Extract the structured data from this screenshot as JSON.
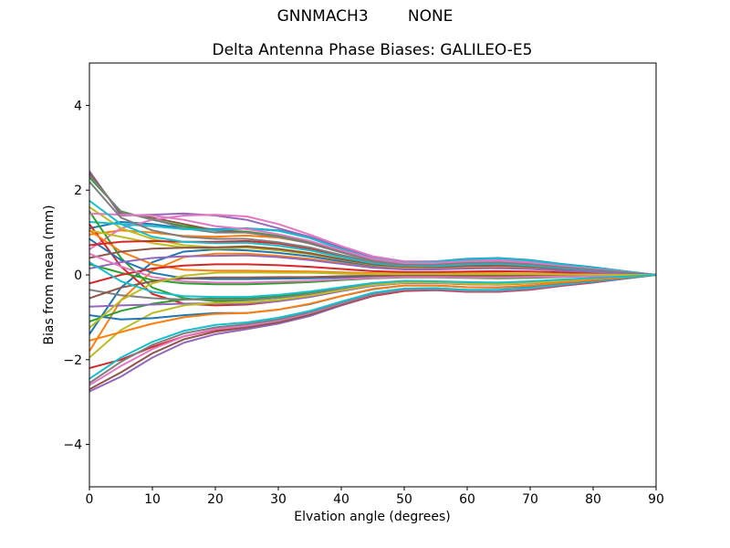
{
  "figure": {
    "suptitle": "GNNMACH3        NONE",
    "title": "Delta Antenna Phase Biases: GALILEO-E5",
    "xlabel": "Elvation angle (degrees)",
    "ylabel": "Bias from mean (mm)"
  },
  "chart_data": {
    "type": "line",
    "title": "Delta Antenna Phase Biases: GALILEO-E5",
    "suptitle": "GNNMACH3        NONE",
    "xlabel": "Elvation angle (degrees)",
    "ylabel": "Bias from mean (mm)",
    "xlim": [
      0,
      90
    ],
    "ylim": [
      -5,
      5
    ],
    "grid": false,
    "legend": "none",
    "axis_color": "#000000",
    "background_color": "#ffffff",
    "palette": [
      "#1f77b4",
      "#ff7f0e",
      "#2ca02c",
      "#d62728",
      "#9467bd",
      "#8c564b",
      "#e377c2",
      "#7f7f7f",
      "#bcbd22",
      "#17becf"
    ],
    "x_ticks": [
      {
        "v": 0,
        "label": "0"
      },
      {
        "v": 10,
        "label": "10"
      },
      {
        "v": 20,
        "label": "20"
      },
      {
        "v": 30,
        "label": "30"
      },
      {
        "v": 40,
        "label": "40"
      },
      {
        "v": 50,
        "label": "50"
      },
      {
        "v": 60,
        "label": "60"
      },
      {
        "v": 70,
        "label": "70"
      },
      {
        "v": 80,
        "label": "80"
      },
      {
        "v": 90,
        "label": "90"
      }
    ],
    "y_ticks": [
      {
        "v": -4,
        "label": "−4"
      },
      {
        "v": -2,
        "label": "−2"
      },
      {
        "v": 0,
        "label": "0"
      },
      {
        "v": 2,
        "label": "2"
      },
      {
        "v": 4,
        "label": "4"
      }
    ],
    "x": [
      0,
      5,
      10,
      15,
      20,
      25,
      30,
      35,
      40,
      45,
      50,
      55,
      60,
      65,
      70,
      75,
      80,
      85,
      90
    ],
    "series": [
      {
        "values": [
          1.1,
          1.25,
          1.2,
          1.1,
          1.08,
          1.1,
          1.05,
          0.88,
          0.62,
          0.4,
          0.3,
          0.32,
          0.38,
          0.4,
          0.35,
          0.26,
          0.18,
          0.09,
          0.0
        ]
      },
      {
        "values": [
          0.95,
          1.05,
          1.0,
          0.92,
          0.9,
          0.93,
          0.88,
          0.75,
          0.55,
          0.35,
          0.27,
          0.28,
          0.33,
          0.34,
          0.3,
          0.22,
          0.15,
          0.08,
          0.0
        ]
      },
      {
        "values": [
          2.3,
          1.5,
          1.3,
          1.15,
          1.05,
          1.02,
          0.92,
          0.78,
          0.58,
          0.38,
          0.28,
          0.29,
          0.34,
          0.35,
          0.3,
          0.22,
          0.15,
          0.08,
          0.0
        ]
      },
      {
        "values": [
          -2.2,
          -2.0,
          -1.7,
          -1.45,
          -1.3,
          -1.22,
          -1.1,
          -0.95,
          -0.72,
          -0.5,
          -0.38,
          -0.36,
          -0.4,
          -0.4,
          -0.35,
          -0.26,
          -0.18,
          -0.09,
          0.0
        ]
      },
      {
        "values": [
          2.45,
          1.4,
          1.42,
          1.45,
          1.4,
          1.3,
          1.1,
          0.9,
          0.65,
          0.42,
          0.3,
          0.3,
          0.35,
          0.36,
          0.31,
          0.23,
          0.15,
          0.08,
          0.0
        ]
      },
      {
        "values": [
          2.4,
          1.45,
          1.35,
          1.2,
          1.05,
          1.0,
          0.9,
          0.75,
          0.55,
          0.36,
          0.27,
          0.27,
          0.31,
          0.32,
          0.28,
          0.2,
          0.13,
          0.07,
          0.0
        ]
      },
      {
        "values": [
          0.6,
          1.1,
          1.3,
          1.4,
          1.42,
          1.38,
          1.2,
          0.95,
          0.68,
          0.44,
          0.32,
          0.32,
          0.36,
          0.37,
          0.32,
          0.23,
          0.15,
          0.08,
          0.0
        ]
      },
      {
        "values": [
          2.35,
          1.48,
          1.32,
          1.1,
          1.0,
          1.0,
          0.9,
          0.74,
          0.53,
          0.34,
          0.25,
          0.25,
          0.29,
          0.3,
          0.26,
          0.19,
          0.13,
          0.07,
          0.0
        ]
      },
      {
        "values": [
          1.6,
          1.1,
          0.85,
          0.7,
          0.65,
          0.68,
          0.62,
          0.52,
          0.38,
          0.25,
          0.19,
          0.2,
          0.23,
          0.24,
          0.21,
          0.15,
          0.1,
          0.05,
          0.0
        ]
      },
      {
        "values": [
          1.25,
          1.2,
          1.15,
          1.08,
          1.06,
          1.09,
          1.04,
          0.87,
          0.61,
          0.39,
          0.29,
          0.31,
          0.37,
          0.39,
          0.34,
          0.25,
          0.17,
          0.09,
          0.0
        ]
      },
      {
        "values": [
          -1.4,
          -0.3,
          0.3,
          0.55,
          0.6,
          0.58,
          0.52,
          0.44,
          0.32,
          0.21,
          0.16,
          0.17,
          0.2,
          0.21,
          0.18,
          0.13,
          0.09,
          0.05,
          0.0
        ]
      },
      {
        "values": [
          -1.8,
          -0.6,
          0.1,
          0.42,
          0.5,
          0.5,
          0.45,
          0.38,
          0.28,
          0.18,
          0.14,
          0.14,
          0.17,
          0.18,
          0.15,
          0.11,
          0.07,
          0.04,
          0.0
        ]
      },
      {
        "values": [
          1.5,
          0.4,
          -0.3,
          -0.55,
          -0.62,
          -0.6,
          -0.54,
          -0.45,
          -0.33,
          -0.22,
          -0.17,
          -0.17,
          -0.2,
          -0.21,
          -0.18,
          -0.13,
          -0.09,
          -0.05,
          0.0
        ]
      },
      {
        "values": [
          1.2,
          0.2,
          -0.45,
          -0.68,
          -0.72,
          -0.7,
          -0.62,
          -0.52,
          -0.38,
          -0.25,
          -0.19,
          -0.19,
          -0.22,
          -0.23,
          -0.2,
          -0.15,
          -0.1,
          -0.05,
          0.0
        ]
      },
      {
        "values": [
          -2.75,
          -2.4,
          -1.95,
          -1.6,
          -1.4,
          -1.28,
          -1.15,
          -0.97,
          -0.72,
          -0.48,
          -0.36,
          -0.35,
          -0.39,
          -0.39,
          -0.34,
          -0.25,
          -0.17,
          -0.09,
          0.0
        ]
      },
      {
        "values": [
          -2.7,
          -2.3,
          -1.85,
          -1.52,
          -1.34,
          -1.24,
          -1.12,
          -0.94,
          -0.7,
          -0.47,
          -0.35,
          -0.34,
          -0.38,
          -0.38,
          -0.33,
          -0.24,
          -0.16,
          -0.08,
          0.0
        ]
      },
      {
        "values": [
          -2.6,
          -2.15,
          -1.75,
          -1.45,
          -1.28,
          -1.2,
          -1.08,
          -0.9,
          -0.67,
          -0.45,
          -0.34,
          -0.33,
          -0.37,
          -0.37,
          -0.32,
          -0.23,
          -0.15,
          -0.08,
          0.0
        ]
      },
      {
        "values": [
          -2.55,
          -2.05,
          -1.65,
          -1.38,
          -1.24,
          -1.16,
          -1.05,
          -0.88,
          -0.65,
          -0.44,
          -0.33,
          -0.32,
          -0.36,
          -0.36,
          -0.31,
          -0.22,
          -0.15,
          -0.08,
          0.0
        ]
      },
      {
        "values": [
          1.05,
          0.9,
          0.75,
          0.65,
          0.62,
          0.64,
          0.58,
          0.49,
          0.36,
          0.24,
          0.18,
          0.19,
          0.22,
          0.23,
          0.2,
          0.14,
          0.1,
          0.05,
          0.0
        ]
      },
      {
        "values": [
          -2.45,
          -1.95,
          -1.58,
          -1.32,
          -1.18,
          -1.12,
          -1.01,
          -0.85,
          -0.63,
          -0.42,
          -0.32,
          -0.31,
          -0.35,
          -0.35,
          -0.3,
          -0.22,
          -0.15,
          -0.08,
          0.0
        ]
      },
      {
        "values": [
          0.85,
          0.35,
          0.05,
          -0.08,
          -0.1,
          -0.1,
          -0.09,
          -0.08,
          -0.06,
          -0.04,
          -0.03,
          -0.03,
          -0.04,
          -0.04,
          -0.03,
          -0.02,
          -0.02,
          -0.01,
          0.0
        ]
      },
      {
        "values": [
          1.05,
          0.55,
          0.25,
          0.12,
          0.1,
          0.1,
          0.09,
          0.08,
          0.06,
          0.04,
          0.03,
          0.03,
          0.04,
          0.04,
          0.03,
          0.02,
          0.02,
          0.01,
          0.0
        ]
      },
      {
        "values": [
          -1.1,
          -0.85,
          -0.68,
          -0.58,
          -0.55,
          -0.56,
          -0.51,
          -0.43,
          -0.32,
          -0.21,
          -0.16,
          -0.16,
          -0.19,
          -0.2,
          -0.17,
          -0.12,
          -0.08,
          -0.04,
          0.0
        ]
      },
      {
        "values": [
          0.7,
          0.78,
          0.8,
          0.78,
          0.78,
          0.8,
          0.74,
          0.62,
          0.45,
          0.3,
          0.22,
          0.23,
          0.27,
          0.28,
          0.24,
          0.18,
          0.12,
          0.06,
          0.0
        ]
      },
      {
        "values": [
          -0.75,
          -0.72,
          -0.7,
          -0.68,
          -0.67,
          -0.68,
          -0.62,
          -0.52,
          -0.38,
          -0.26,
          -0.19,
          -0.19,
          -0.22,
          -0.23,
          -0.2,
          -0.14,
          -0.1,
          -0.05,
          0.0
        ]
      },
      {
        "values": [
          0.4,
          0.55,
          0.62,
          0.64,
          0.65,
          0.67,
          0.61,
          0.51,
          0.37,
          0.25,
          0.19,
          0.19,
          0.22,
          0.23,
          0.2,
          0.14,
          0.1,
          0.05,
          0.0
        ]
      },
      {
        "values": [
          1.45,
          1.42,
          1.4,
          1.3,
          1.15,
          1.08,
          0.96,
          0.8,
          0.58,
          0.38,
          0.28,
          0.28,
          0.32,
          0.33,
          0.29,
          0.21,
          0.14,
          0.07,
          0.0
        ]
      },
      {
        "values": [
          -0.35,
          -0.48,
          -0.55,
          -0.58,
          -0.58,
          -0.59,
          -0.54,
          -0.45,
          -0.33,
          -0.22,
          -0.17,
          -0.17,
          -0.2,
          -0.2,
          -0.17,
          -0.13,
          -0.09,
          -0.04,
          0.0
        ]
      },
      {
        "values": [
          -1.95,
          -1.3,
          -0.9,
          -0.72,
          -0.66,
          -0.65,
          -0.59,
          -0.49,
          -0.36,
          -0.24,
          -0.18,
          -0.18,
          -0.21,
          -0.22,
          -0.19,
          -0.14,
          -0.09,
          -0.05,
          0.0
        ]
      },
      {
        "values": [
          1.75,
          1.2,
          0.9,
          0.78,
          0.75,
          0.76,
          0.69,
          0.58,
          0.42,
          0.28,
          0.21,
          0.21,
          0.25,
          0.26,
          0.22,
          0.16,
          0.11,
          0.06,
          0.0
        ]
      },
      {
        "values": [
          -0.95,
          -1.05,
          -1.02,
          -0.95,
          -0.9,
          -0.9,
          -0.82,
          -0.69,
          -0.5,
          -0.34,
          -0.25,
          -0.25,
          -0.29,
          -0.3,
          -0.26,
          -0.19,
          -0.13,
          -0.07,
          0.0
        ]
      },
      {
        "values": [
          -1.55,
          -1.35,
          -1.15,
          -1.0,
          -0.92,
          -0.9,
          -0.82,
          -0.68,
          -0.5,
          -0.33,
          -0.25,
          -0.25,
          -0.29,
          -0.29,
          -0.25,
          -0.18,
          -0.12,
          -0.06,
          0.0
        ]
      },
      {
        "values": [
          0.25,
          0.05,
          -0.12,
          -0.2,
          -0.22,
          -0.22,
          -0.2,
          -0.17,
          -0.12,
          -0.08,
          -0.06,
          -0.06,
          -0.07,
          -0.08,
          -0.07,
          -0.05,
          -0.03,
          -0.02,
          0.0
        ]
      },
      {
        "values": [
          -0.2,
          0.0,
          0.15,
          0.22,
          0.25,
          0.25,
          0.23,
          0.19,
          0.14,
          0.09,
          0.07,
          0.07,
          0.08,
          0.09,
          0.08,
          0.06,
          0.04,
          0.02,
          0.0
        ]
      },
      {
        "values": [
          0.15,
          0.3,
          0.4,
          0.44,
          0.45,
          0.46,
          0.42,
          0.35,
          0.26,
          0.17,
          0.13,
          0.13,
          0.15,
          0.16,
          0.14,
          0.1,
          0.07,
          0.03,
          0.0
        ]
      },
      {
        "values": [
          -0.55,
          -0.3,
          -0.15,
          -0.08,
          -0.06,
          -0.06,
          -0.05,
          -0.05,
          -0.03,
          -0.02,
          -0.02,
          -0.02,
          -0.02,
          -0.02,
          -0.02,
          -0.01,
          -0.01,
          0.0,
          0.0
        ]
      },
      {
        "values": [
          0.5,
          0.2,
          -0.05,
          -0.15,
          -0.18,
          -0.18,
          -0.16,
          -0.14,
          -0.1,
          -0.07,
          -0.05,
          -0.05,
          -0.06,
          -0.06,
          -0.05,
          -0.04,
          -0.03,
          -0.01,
          0.0
        ]
      },
      {
        "values": [
          2.2,
          1.35,
          1.05,
          0.9,
          0.85,
          0.85,
          0.77,
          0.65,
          0.47,
          0.31,
          0.23,
          0.24,
          0.28,
          0.29,
          0.25,
          0.18,
          0.12,
          0.06,
          0.0
        ]
      },
      {
        "values": [
          -1.25,
          -0.6,
          -0.2,
          -0.02,
          0.05,
          0.06,
          0.05,
          0.05,
          0.03,
          0.02,
          0.02,
          0.02,
          0.02,
          0.02,
          0.02,
          0.01,
          0.01,
          0.0,
          0.0
        ]
      },
      {
        "values": [
          0.3,
          -0.15,
          -0.4,
          -0.5,
          -0.52,
          -0.52,
          -0.47,
          -0.39,
          -0.29,
          -0.19,
          -0.14,
          -0.15,
          -0.17,
          -0.18,
          -0.15,
          -0.11,
          -0.07,
          -0.04,
          0.0
        ]
      }
    ]
  }
}
